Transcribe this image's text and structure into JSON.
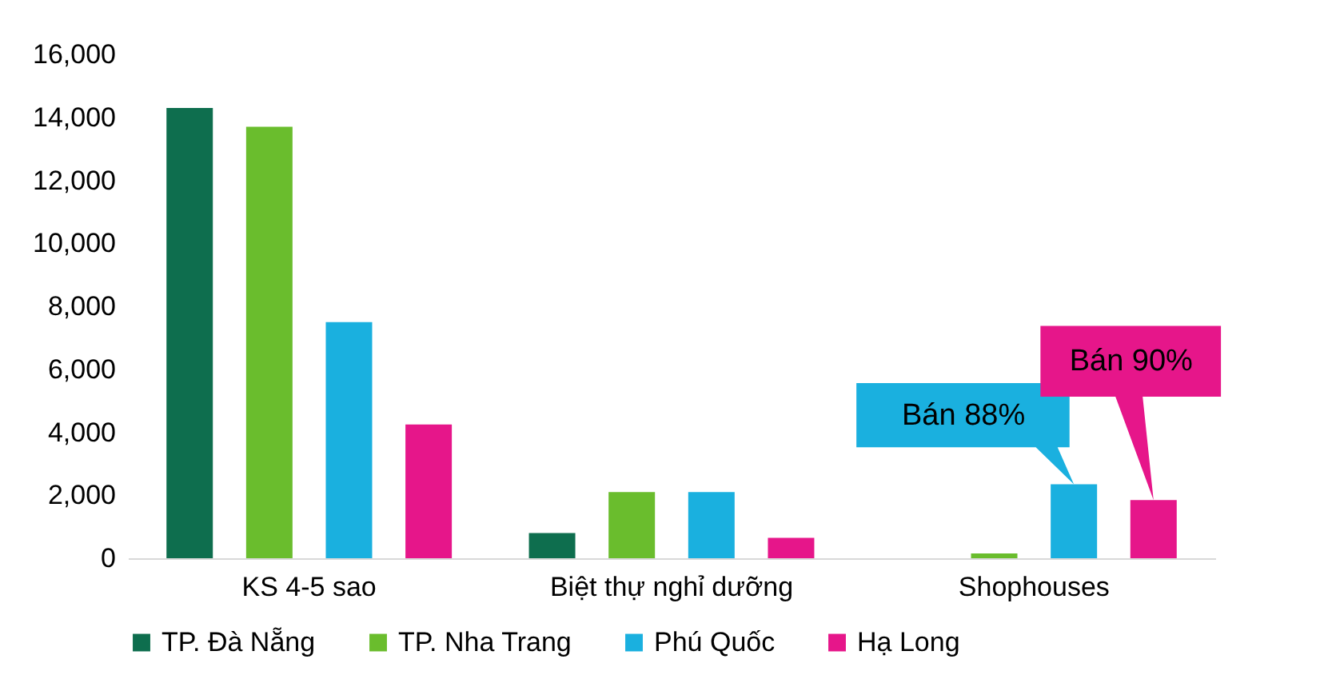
{
  "chart_data": {
    "type": "bar",
    "categories": [
      "KS 4-5 sao",
      "Biệt thự nghỉ dưỡng",
      "Shophouses"
    ],
    "series": [
      {
        "name": "TP. Đà Nẵng",
        "color": "#0e6e4e",
        "values": [
          14300,
          800,
          0
        ]
      },
      {
        "name": "TP. Nha Trang",
        "color": "#6abd2d",
        "values": [
          13700,
          2100,
          150
        ]
      },
      {
        "name": "Phú Quốc",
        "color": "#1ab0df",
        "values": [
          7500,
          2100,
          2350
        ]
      },
      {
        "name": "Hạ Long",
        "color": "#e6168a",
        "values": [
          4250,
          650,
          1850
        ]
      }
    ],
    "ylim": [
      0,
      16000
    ],
    "yticks": [
      0,
      {
        "value": 2000,
        "label": "2,000"
      },
      {
        "value": 4000,
        "label": "4,000"
      },
      {
        "value": 6000,
        "label": "6,000"
      },
      {
        "value": 8000,
        "label": "8,000"
      },
      {
        "value": 10000,
        "label": "10,000"
      },
      {
        "value": 12000,
        "label": "12,000"
      },
      {
        "value": 14000,
        "label": "14,000"
      },
      {
        "value": 16000,
        "label": "16,000"
      }
    ],
    "grid": false,
    "legend": "bottom",
    "annotations": [
      "Bán 88%",
      "Bán 90%"
    ]
  }
}
